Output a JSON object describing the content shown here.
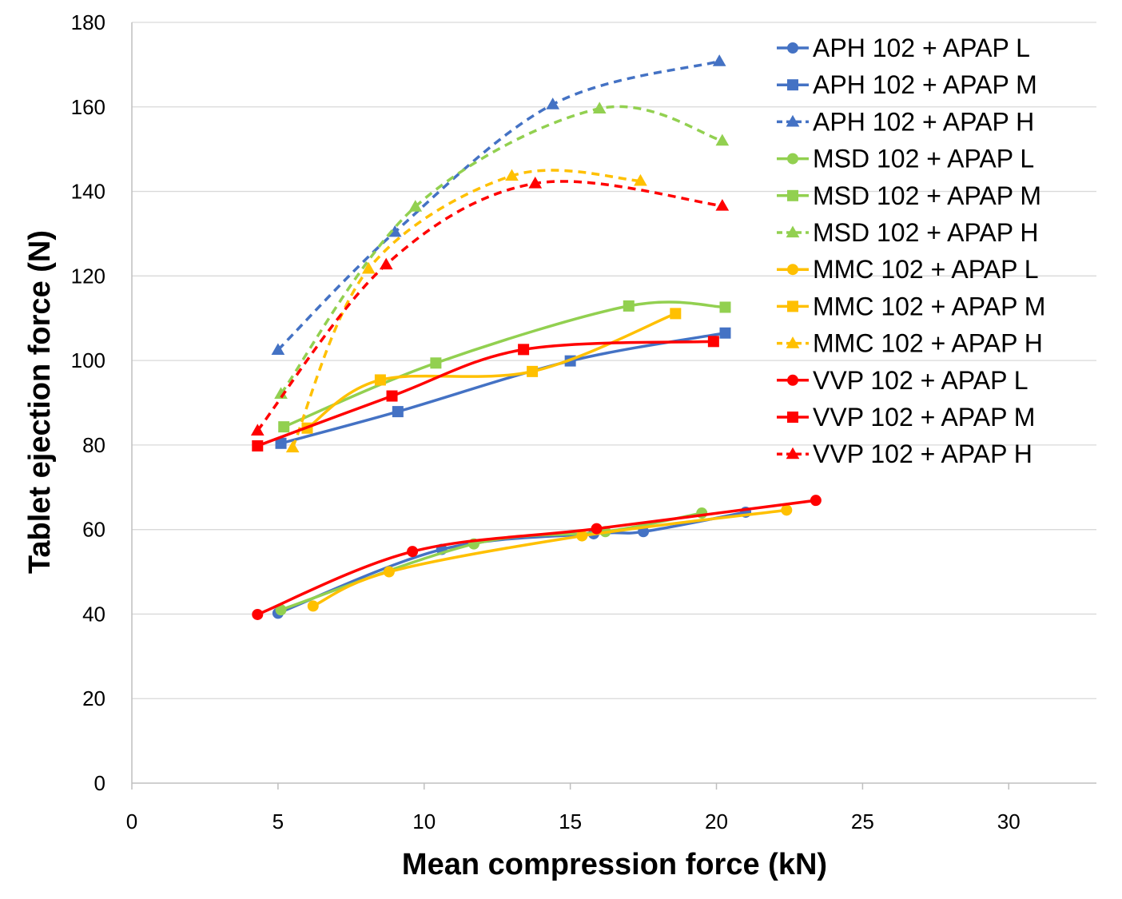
{
  "chart_data": {
    "type": "line",
    "title": "",
    "xlabel": "Mean compression force (kN)",
    "ylabel": "Tablet ejection force (N)",
    "xlim": [
      0,
      33
    ],
    "ylim": [
      0,
      180
    ],
    "xticks": [
      0,
      5,
      10,
      15,
      20,
      25,
      30
    ],
    "yticks": [
      0,
      20,
      40,
      60,
      80,
      100,
      120,
      140,
      160,
      180
    ],
    "grid": "horizontal",
    "legend_position": "top-right",
    "series": [
      {
        "name": "APH 102 + APAP L",
        "color": "#4472C4",
        "marker": "circle",
        "dash": "solid",
        "x": [
          5.0,
          10.6,
          15.8,
          17.5,
          21.0
        ],
        "y": [
          40.2,
          55.3,
          59.0,
          59.5,
          64.1
        ]
      },
      {
        "name": "APH 102 + APAP M",
        "color": "#4472C4",
        "marker": "square",
        "dash": "solid",
        "x": [
          5.1,
          9.1,
          15.0,
          20.3
        ],
        "y": [
          80.4,
          87.9,
          99.9,
          106.5
        ]
      },
      {
        "name": "APH 102 + APAP H",
        "color": "#4472C4",
        "marker": "triangle",
        "dash": "dashed",
        "x": [
          5.0,
          9.0,
          14.4,
          20.1
        ],
        "y": [
          102.5,
          130.4,
          160.6,
          170.8
        ]
      },
      {
        "name": "MSD 102 + APAP L",
        "color": "#92D050",
        "marker": "circle",
        "dash": "solid",
        "x": [
          5.1,
          11.7,
          16.2,
          19.5
        ],
        "y": [
          41.0,
          56.6,
          59.5,
          63.9
        ]
      },
      {
        "name": "MSD 102 + APAP M",
        "color": "#92D050",
        "marker": "square",
        "dash": "solid",
        "x": [
          5.2,
          10.4,
          17.0,
          20.3
        ],
        "y": [
          84.3,
          99.4,
          112.9,
          112.6
        ]
      },
      {
        "name": "MSD 102 + APAP H",
        "color": "#92D050",
        "marker": "triangle",
        "dash": "dashed",
        "x": [
          5.1,
          9.7,
          16.0,
          20.2
        ],
        "y": [
          92.1,
          136.4,
          159.6,
          152.0
        ]
      },
      {
        "name": "MMC 102 + APAP L",
        "color": "#FFC000",
        "marker": "circle",
        "dash": "solid",
        "x": [
          6.2,
          8.8,
          15.4,
          22.4
        ],
        "y": [
          41.9,
          50.0,
          58.5,
          64.6
        ]
      },
      {
        "name": "MMC 102 + APAP M",
        "color": "#FFC000",
        "marker": "square",
        "dash": "solid",
        "x": [
          6.0,
          8.5,
          13.7,
          18.6
        ],
        "y": [
          84.0,
          95.4,
          97.4,
          111.1
        ]
      },
      {
        "name": "MMC 102 + APAP H",
        "color": "#FFC000",
        "marker": "triangle",
        "dash": "dashed",
        "x": [
          5.5,
          8.1,
          13.0,
          17.4
        ],
        "y": [
          79.4,
          121.7,
          143.7,
          142.5
        ]
      },
      {
        "name": "VVP 102 + APAP L",
        "color": "#FF0000",
        "marker": "circle",
        "dash": "solid",
        "x": [
          4.3,
          9.6,
          15.9,
          23.4
        ],
        "y": [
          39.9,
          54.8,
          60.2,
          66.9
        ]
      },
      {
        "name": "VVP 102 + APAP M",
        "color": "#FF0000",
        "marker": "square",
        "dash": "solid",
        "x": [
          4.3,
          8.9,
          13.4,
          19.9
        ],
        "y": [
          79.8,
          91.6,
          102.6,
          104.5
        ]
      },
      {
        "name": "VVP 102 + APAP H",
        "color": "#FF0000",
        "marker": "triangle",
        "dash": "dashed",
        "x": [
          4.3,
          8.7,
          13.8,
          20.2
        ],
        "y": [
          83.4,
          122.7,
          141.9,
          136.6
        ]
      }
    ]
  }
}
